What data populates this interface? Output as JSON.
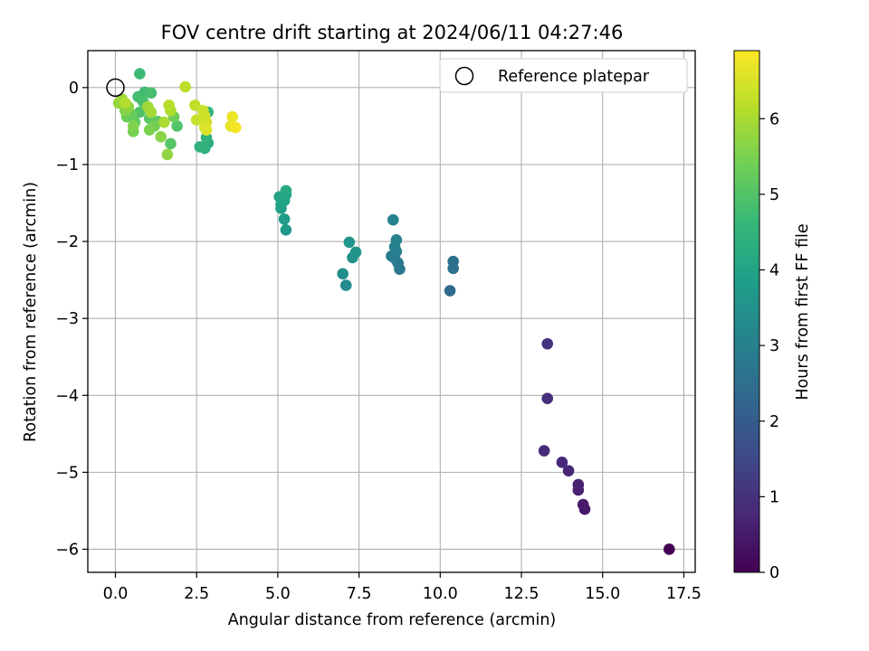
{
  "chart_data": {
    "type": "scatter",
    "title": "FOV centre drift starting at 2024/06/11 04:27:46",
    "xlabel": "Angular distance from reference (arcmin)",
    "ylabel": "Rotation from reference (arcmin)",
    "xlim": [
      -0.85,
      17.85
    ],
    "ylim": [
      -6.3,
      0.48
    ],
    "xticks": [
      0,
      2.5,
      5,
      7.5,
      10,
      12.5,
      15,
      17.5
    ],
    "xtick_labels": [
      "0.0",
      "2.5",
      "5.0",
      "7.5",
      "10.0",
      "12.5",
      "15.0",
      "17.5"
    ],
    "yticks": [
      0,
      -1,
      -2,
      -3,
      -4,
      -5,
      -6
    ],
    "ytick_labels": [
      "0",
      "−1",
      "−2",
      "−3",
      "−4",
      "−5",
      "−6"
    ],
    "grid": true,
    "colormap": "viridis",
    "colorbar": {
      "label": "Hours from first FF file",
      "range": [
        0,
        6.9
      ],
      "ticks": [
        0,
        1,
        2,
        3,
        4,
        5,
        6
      ],
      "tick_labels": [
        "0",
        "1",
        "2",
        "3",
        "4",
        "5",
        "6"
      ]
    },
    "legend": {
      "placement": "top-right",
      "entries": [
        "Reference platepar"
      ]
    },
    "reference_point": {
      "x": 0,
      "y": 0
    },
    "points": [
      {
        "x": 17.05,
        "y": -6.0,
        "c": 0.0
      },
      {
        "x": 14.45,
        "y": -5.48,
        "c": 0.45
      },
      {
        "x": 14.4,
        "y": -5.42,
        "c": 0.5
      },
      {
        "x": 14.25,
        "y": -5.23,
        "c": 0.6
      },
      {
        "x": 14.25,
        "y": -5.16,
        "c": 0.65
      },
      {
        "x": 13.95,
        "y": -4.98,
        "c": 0.75
      },
      {
        "x": 13.75,
        "y": -4.87,
        "c": 0.8
      },
      {
        "x": 13.2,
        "y": -4.72,
        "c": 0.85
      },
      {
        "x": 13.3,
        "y": -4.04,
        "c": 0.95
      },
      {
        "x": 13.3,
        "y": -3.33,
        "c": 1.0
      },
      {
        "x": 10.3,
        "y": -2.64,
        "c": 2.4
      },
      {
        "x": 10.4,
        "y": -2.35,
        "c": 2.5
      },
      {
        "x": 10.4,
        "y": -2.26,
        "c": 2.55
      },
      {
        "x": 8.75,
        "y": -2.36,
        "c": 2.75
      },
      {
        "x": 8.7,
        "y": -2.28,
        "c": 2.8
      },
      {
        "x": 8.5,
        "y": -2.19,
        "c": 2.85
      },
      {
        "x": 8.6,
        "y": -2.22,
        "c": 2.9
      },
      {
        "x": 8.65,
        "y": -2.13,
        "c": 2.95
      },
      {
        "x": 8.6,
        "y": -2.07,
        "c": 3.0
      },
      {
        "x": 8.65,
        "y": -1.98,
        "c": 3.05
      },
      {
        "x": 8.55,
        "y": -1.72,
        "c": 3.1
      },
      {
        "x": 7.1,
        "y": -2.57,
        "c": 3.35
      },
      {
        "x": 7.0,
        "y": -2.42,
        "c": 3.4
      },
      {
        "x": 7.3,
        "y": -2.21,
        "c": 3.5
      },
      {
        "x": 7.4,
        "y": -2.14,
        "c": 3.55
      },
      {
        "x": 7.2,
        "y": -2.01,
        "c": 3.6
      },
      {
        "x": 5.25,
        "y": -1.85,
        "c": 3.75
      },
      {
        "x": 5.2,
        "y": -1.71,
        "c": 3.8
      },
      {
        "x": 5.1,
        "y": -1.57,
        "c": 3.85
      },
      {
        "x": 5.1,
        "y": -1.52,
        "c": 3.9
      },
      {
        "x": 5.2,
        "y": -1.47,
        "c": 3.95
      },
      {
        "x": 5.05,
        "y": -1.42,
        "c": 4.0
      },
      {
        "x": 5.25,
        "y": -1.39,
        "c": 4.05
      },
      {
        "x": 5.25,
        "y": -1.34,
        "c": 4.1
      },
      {
        "x": 2.85,
        "y": -0.72,
        "c": 4.3
      },
      {
        "x": 2.75,
        "y": -0.79,
        "c": 4.35
      },
      {
        "x": 2.6,
        "y": -0.77,
        "c": 4.4
      },
      {
        "x": 2.8,
        "y": -0.65,
        "c": 4.45
      },
      {
        "x": 2.85,
        "y": -0.32,
        "c": 4.5
      },
      {
        "x": 0.75,
        "y": 0.18,
        "c": 4.7
      },
      {
        "x": 0.9,
        "y": -0.06,
        "c": 4.75
      },
      {
        "x": 0.7,
        "y": -0.12,
        "c": 4.8
      },
      {
        "x": 1.1,
        "y": -0.07,
        "c": 4.85
      },
      {
        "x": 0.85,
        "y": -0.18,
        "c": 4.9
      },
      {
        "x": 0.75,
        "y": -0.32,
        "c": 4.95
      },
      {
        "x": 1.9,
        "y": -0.5,
        "c": 5.0
      },
      {
        "x": 1.7,
        "y": -0.73,
        "c": 5.05
      },
      {
        "x": 1.05,
        "y": -0.4,
        "c": 5.1
      },
      {
        "x": 1.3,
        "y": -0.44,
        "c": 5.15
      },
      {
        "x": 0.6,
        "y": -0.45,
        "c": 5.2
      },
      {
        "x": 0.5,
        "y": -0.35,
        "c": 5.25
      },
      {
        "x": 0.35,
        "y": -0.38,
        "c": 5.3
      },
      {
        "x": 1.8,
        "y": -0.38,
        "c": 5.35
      },
      {
        "x": 1.2,
        "y": -0.5,
        "c": 5.4
      },
      {
        "x": 0.55,
        "y": -0.57,
        "c": 5.45
      },
      {
        "x": 1.05,
        "y": -0.55,
        "c": 5.5
      },
      {
        "x": 0.55,
        "y": -0.5,
        "c": 5.55
      },
      {
        "x": 0.3,
        "y": -0.3,
        "c": 5.6
      },
      {
        "x": 1.4,
        "y": -0.64,
        "c": 5.65
      },
      {
        "x": 0.4,
        "y": -0.25,
        "c": 5.7
      },
      {
        "x": 1.6,
        "y": -0.87,
        "c": 5.75
      },
      {
        "x": 0.1,
        "y": -0.2,
        "c": 5.8
      },
      {
        "x": 0.2,
        "y": -0.15,
        "c": 5.85
      },
      {
        "x": 1.0,
        "y": -0.25,
        "c": 5.9
      },
      {
        "x": 1.1,
        "y": -0.32,
        "c": 5.95
      },
      {
        "x": 1.5,
        "y": -0.45,
        "c": 6.0
      },
      {
        "x": 1.7,
        "y": -0.3,
        "c": 6.05
      },
      {
        "x": 0.3,
        "y": -0.2,
        "c": 6.1
      },
      {
        "x": 1.65,
        "y": -0.23,
        "c": 6.15
      },
      {
        "x": 2.15,
        "y": 0.01,
        "c": 6.2
      },
      {
        "x": 2.45,
        "y": -0.23,
        "c": 6.25
      },
      {
        "x": 2.5,
        "y": -0.42,
        "c": 6.3
      },
      {
        "x": 2.7,
        "y": -0.3,
        "c": 6.35
      },
      {
        "x": 2.75,
        "y": -0.37,
        "c": 6.4
      },
      {
        "x": 2.8,
        "y": -0.45,
        "c": 6.45
      },
      {
        "x": 2.75,
        "y": -0.52,
        "c": 6.5
      },
      {
        "x": 2.8,
        "y": -0.55,
        "c": 6.55
      },
      {
        "x": 3.55,
        "y": -0.5,
        "c": 6.65
      },
      {
        "x": 3.6,
        "y": -0.38,
        "c": 6.7
      },
      {
        "x": 3.7,
        "y": -0.52,
        "c": 6.8
      }
    ]
  }
}
